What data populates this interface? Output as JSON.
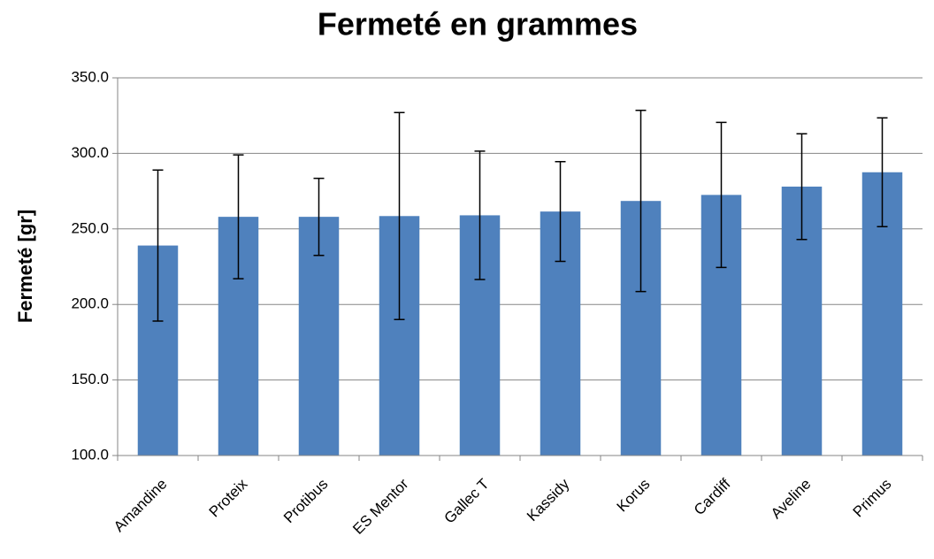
{
  "chart_data": {
    "type": "bar",
    "title": "Fermeté en grammes",
    "y_label": "Fermeté [gr]",
    "categories": [
      "Amandine",
      "Proteix",
      "Protibus",
      "ES Mentor",
      "Gallec T",
      "Kassidy",
      "Korus",
      "Cardiff",
      "Aveline",
      "Primus"
    ],
    "values": [
      239,
      258,
      258,
      258.5,
      259,
      261.5,
      268.5,
      272.5,
      278,
      287.5
    ],
    "errors": [
      50,
      41,
      25.5,
      68.5,
      42.5,
      33,
      60,
      48,
      35,
      36
    ],
    "color": "#4f81bd",
    "ylim": [
      100,
      350
    ],
    "yticks": [
      {
        "value": 100,
        "label": "100.0"
      },
      {
        "value": 150,
        "label": "150.0"
      },
      {
        "value": 200,
        "label": "200.0"
      },
      {
        "value": 250,
        "label": "250.0"
      },
      {
        "value": 300,
        "label": "300.0"
      },
      {
        "value": 350,
        "label": "350.0"
      }
    ],
    "grid": true
  }
}
